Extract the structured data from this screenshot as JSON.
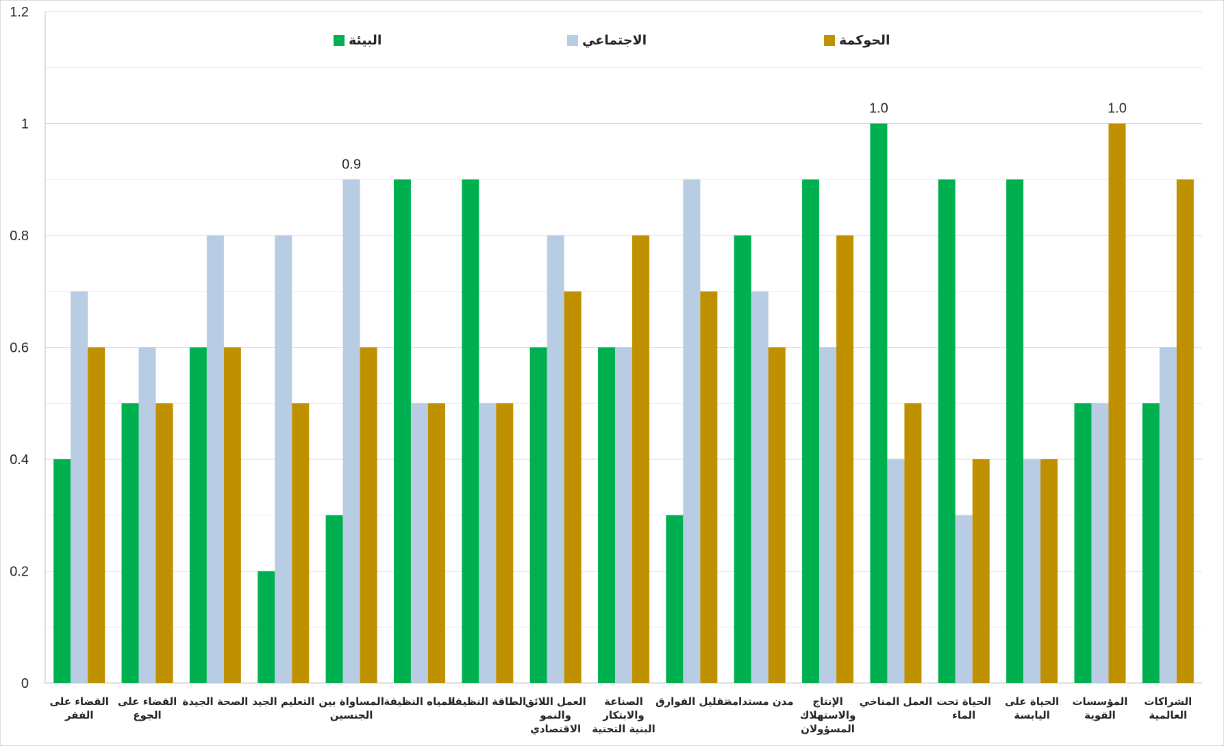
{
  "chart_data": {
    "type": "bar",
    "title": "",
    "xlabel": "",
    "ylabel": "",
    "ylim": [
      0,
      1.2
    ],
    "yticks": [
      "0",
      "0.2",
      "0.4",
      "0.6",
      "0.8",
      "1",
      "1.2"
    ],
    "grid": true,
    "legend_position": "top",
    "categories": [
      [
        "القضاء على",
        "الفقر"
      ],
      [
        "القضاء على",
        "الجوع"
      ],
      [
        "الصحة الجيدة"
      ],
      [
        "التعليم الجيد"
      ],
      [
        "المساواة بين",
        "الجنسين"
      ],
      [
        "المياه النظيفة"
      ],
      [
        "الطاقة النظيفة"
      ],
      [
        "العمل اللائق",
        "والنمو",
        "الاقتصادي"
      ],
      [
        "الصناعة",
        "والابتكار",
        "البنية التحتية"
      ],
      [
        "تقليل الفوارق"
      ],
      [
        "مدن مستدامة"
      ],
      [
        "الإنتاج",
        "والاستهلاك",
        "المسؤولان"
      ],
      [
        "العمل المناخي"
      ],
      [
        "الحياة تحت",
        "الماء"
      ],
      [
        "الحياة على",
        "اليابسة"
      ],
      [
        "المؤسسات",
        "القوية"
      ],
      [
        "الشراكات",
        "العالمية"
      ]
    ],
    "series": [
      {
        "name": "البيئة",
        "color": "#00B050",
        "values": [
          0.4,
          0.5,
          0.6,
          0.2,
          0.3,
          0.9,
          0.9,
          0.6,
          0.6,
          0.3,
          0.8,
          0.9,
          1.0,
          0.9,
          0.9,
          0.5,
          0.5
        ]
      },
      {
        "name": "الاجتماعي",
        "color": "#B8CCE4",
        "values": [
          0.7,
          0.6,
          0.8,
          0.8,
          0.9,
          0.5,
          0.5,
          0.8,
          0.6,
          0.9,
          0.7,
          0.6,
          0.4,
          0.3,
          0.4,
          0.5,
          0.6
        ]
      },
      {
        "name": "الحوكمة",
        "color": "#BF9000",
        "values": [
          0.6,
          0.5,
          0.6,
          0.5,
          0.6,
          0.5,
          0.5,
          0.7,
          0.8,
          0.7,
          0.6,
          0.8,
          0.5,
          0.4,
          0.4,
          1.0,
          0.9
        ]
      }
    ],
    "data_labels": [
      {
        "category_index": 4,
        "series_index": 1,
        "text": "0.9"
      },
      {
        "category_index": 12,
        "series_index": 0,
        "text": "1.0"
      },
      {
        "category_index": 15,
        "series_index": 2,
        "text": "1.0"
      }
    ]
  }
}
